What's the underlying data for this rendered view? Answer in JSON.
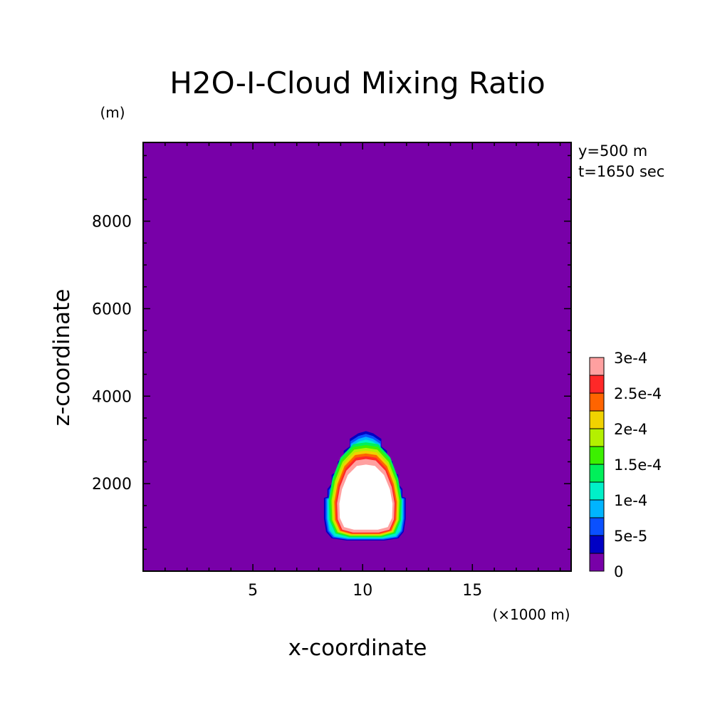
{
  "chart_data": {
    "type": "heatmap",
    "title": "H2O-I-Cloud Mixing Ratio",
    "xlabel": "x-coordinate",
    "ylabel": "z-coordinate",
    "x_unit": "(×1000 m)",
    "y_unit": "(m)",
    "info": [
      "y=500 m",
      "t=1650 sec"
    ],
    "xlim": [
      0,
      19.5
    ],
    "ylim": [
      0,
      9800
    ],
    "xticks": [
      5,
      10,
      15
    ],
    "yticks": [
      2000,
      4000,
      6000,
      8000
    ],
    "levels": [
      0,
      2.5e-05,
      5e-05,
      7.5e-05,
      0.0001,
      0.000125,
      0.00015,
      0.000175,
      0.0002,
      0.000225,
      0.00025,
      0.000275,
      0.0003
    ],
    "level_colors": [
      "#7800a8",
      "#0000c4",
      "#0a50ff",
      "#00b4ff",
      "#00f0c8",
      "#00f05a",
      "#3cf000",
      "#b4f000",
      "#f0d200",
      "#ff6400",
      "#ff2828",
      "#ffa0a0"
    ],
    "colorbar_labels": [
      {
        "level": 0,
        "text": "0"
      },
      {
        "level": 5e-05,
        "text": "5e-5"
      },
      {
        "level": 0.0001,
        "text": "1e-4"
      },
      {
        "level": 0.00015,
        "text": "1.5e-4"
      },
      {
        "level": 0.0002,
        "text": "2e-4"
      },
      {
        "level": 0.00025,
        "text": "2.5e-4"
      },
      {
        "level": 0.0003,
        "text": "3e-4"
      }
    ],
    "cloud": {
      "center_x": 10.15,
      "outer_contour_x_range": [
        8.2,
        12.0
      ],
      "outer_contour_z_range": [
        700,
        3200
      ],
      "above_max_region_x_range": [
        8.9,
        11.4
      ],
      "above_max_region_z_range": [
        900,
        2500
      ],
      "above_max_color": "#ffffff"
    }
  }
}
